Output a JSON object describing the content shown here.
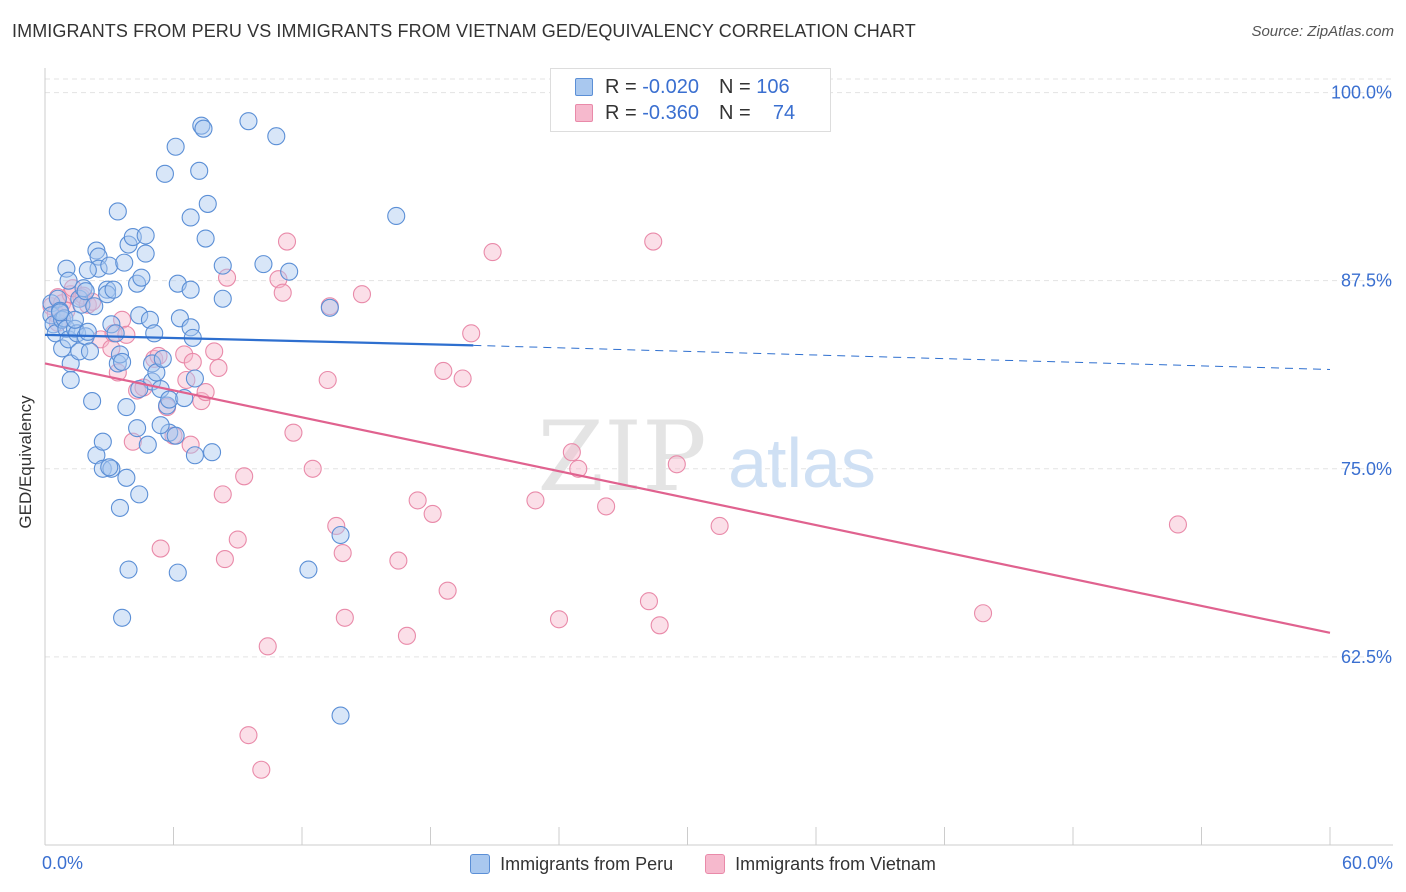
{
  "header": {
    "title": "IMMIGRANTS FROM PERU VS IMMIGRANTS FROM VIETNAM GED/EQUIVALENCY CORRELATION CHART",
    "source": "Source: ZipAtlas.com"
  },
  "watermark": {
    "zip": "ZIP",
    "atlas": "atlas"
  },
  "legend": {
    "peru": {
      "r_label": "R =",
      "r_value": "-0.020",
      "n_label": "N =",
      "n_value": "106"
    },
    "vietnam": {
      "r_label": "R =",
      "r_value": "-0.360",
      "n_label": "N =",
      "n_value": "74"
    }
  },
  "colors": {
    "peru_fill": "#a9c8ef",
    "peru_stroke": "#5b8fd6",
    "peru_line": "#2e6fcf",
    "vietnam_fill": "#f6b9cd",
    "vietnam_stroke": "#e98aa9",
    "vietnam_line": "#e0628f",
    "tick_label": "#3a6fd0",
    "grid": "#e3e3e3"
  },
  "chart_data": {
    "type": "scatter",
    "title": "IMMIGRANTS FROM PERU VS IMMIGRANTS FROM VIETNAM GED/EQUIVALENCY CORRELATION CHART",
    "xlabel": "",
    "ylabel": "GED/Equivalency",
    "xlim": [
      0,
      60
    ],
    "ylim": [
      50,
      101.5
    ],
    "x_tick_labels": [
      "0.0%",
      "60.0%"
    ],
    "y_ticks": [
      62.5,
      75.0,
      87.5,
      100.0
    ],
    "y_tick_labels": [
      "62.5%",
      "75.0%",
      "87.5%",
      "100.0%"
    ],
    "grid": true,
    "legend_position": "bottom-center",
    "series": [
      {
        "name": "Immigrants from Peru",
        "r": -0.02,
        "n": 106,
        "trend": {
          "x_solid": [
            0,
            20
          ],
          "y_solid": [
            83.9,
            83.2
          ],
          "x_dashed": [
            20,
            60
          ],
          "y_dashed": [
            83.2,
            81.6
          ]
        },
        "points": [
          [
            0.3,
            86.0
          ],
          [
            0.3,
            85.2
          ],
          [
            0.4,
            84.6
          ],
          [
            0.5,
            84.0
          ],
          [
            0.6,
            86.3
          ],
          [
            0.7,
            85.5
          ],
          [
            0.8,
            84.9
          ],
          [
            0.8,
            83.0
          ],
          [
            0.9,
            85.0
          ],
          [
            1.0,
            84.3
          ],
          [
            1.1,
            83.6
          ],
          [
            1.0,
            88.3
          ],
          [
            1.1,
            87.5
          ],
          [
            1.2,
            82.0
          ],
          [
            1.2,
            80.9
          ],
          [
            1.4,
            84.3
          ],
          [
            1.5,
            84.0
          ],
          [
            1.6,
            82.8
          ],
          [
            1.6,
            86.3
          ],
          [
            1.7,
            85.9
          ],
          [
            1.8,
            87.0
          ],
          [
            1.9,
            83.8
          ],
          [
            2.0,
            84.1
          ],
          [
            2.1,
            82.8
          ],
          [
            2.2,
            79.5
          ],
          [
            2.3,
            85.8
          ],
          [
            2.4,
            89.5
          ],
          [
            2.5,
            89.1
          ],
          [
            2.5,
            88.3
          ],
          [
            2.4,
            75.9
          ],
          [
            2.7,
            76.8
          ],
          [
            2.7,
            75.0
          ],
          [
            2.9,
            86.9
          ],
          [
            2.9,
            86.6
          ],
          [
            3.0,
            88.5
          ],
          [
            3.1,
            75.0
          ],
          [
            3.1,
            84.6
          ],
          [
            3.2,
            86.9
          ],
          [
            3.3,
            84.0
          ],
          [
            3.4,
            82.0
          ],
          [
            3.4,
            92.1
          ],
          [
            3.5,
            82.6
          ],
          [
            3.5,
            72.4
          ],
          [
            3.6,
            82.1
          ],
          [
            3.7,
            88.7
          ],
          [
            3.8,
            74.4
          ],
          [
            3.8,
            79.1
          ],
          [
            3.9,
            68.3
          ],
          [
            3.6,
            65.1
          ],
          [
            3.9,
            89.9
          ],
          [
            4.1,
            90.4
          ],
          [
            4.3,
            87.3
          ],
          [
            4.3,
            77.7
          ],
          [
            4.4,
            73.3
          ],
          [
            4.4,
            85.2
          ],
          [
            4.5,
            87.7
          ],
          [
            4.7,
            90.5
          ],
          [
            4.7,
            89.3
          ],
          [
            4.8,
            76.6
          ],
          [
            4.9,
            84.9
          ],
          [
            5.0,
            82.0
          ],
          [
            5.0,
            80.8
          ],
          [
            5.1,
            84.0
          ],
          [
            5.2,
            81.4
          ],
          [
            5.4,
            80.3
          ],
          [
            5.5,
            82.3
          ],
          [
            5.6,
            94.6
          ],
          [
            5.7,
            79.2
          ],
          [
            5.8,
            77.4
          ],
          [
            5.8,
            79.6
          ],
          [
            6.1,
            96.4
          ],
          [
            6.2,
            87.3
          ],
          [
            6.2,
            68.1
          ],
          [
            6.3,
            85.0
          ],
          [
            6.5,
            79.7
          ],
          [
            6.8,
            91.7
          ],
          [
            6.8,
            84.4
          ],
          [
            6.9,
            83.7
          ],
          [
            6.8,
            86.9
          ],
          [
            7.0,
            75.9
          ],
          [
            7.0,
            81.0
          ],
          [
            7.2,
            94.8
          ],
          [
            7.3,
            97.8
          ],
          [
            7.4,
            97.6
          ],
          [
            7.5,
            90.3
          ],
          [
            7.6,
            92.6
          ],
          [
            7.8,
            76.1
          ],
          [
            8.3,
            88.5
          ],
          [
            8.3,
            86.3
          ],
          [
            9.5,
            98.1
          ],
          [
            10.2,
            88.6
          ],
          [
            10.8,
            97.1
          ],
          [
            11.4,
            88.1
          ],
          [
            12.3,
            68.3
          ],
          [
            13.3,
            85.7
          ],
          [
            13.8,
            70.6
          ],
          [
            13.8,
            58.6
          ],
          [
            16.4,
            91.8
          ],
          [
            6.1,
            77.2
          ],
          [
            5.4,
            77.9
          ],
          [
            3.0,
            75.1
          ],
          [
            2.0,
            88.2
          ],
          [
            1.4,
            84.9
          ],
          [
            0.7,
            85.4
          ],
          [
            1.9,
            86.8
          ],
          [
            4.4,
            80.3
          ]
        ]
      },
      {
        "name": "Immigrants from Vietnam",
        "r": -0.36,
        "n": 74,
        "trend": {
          "x": [
            0,
            60
          ],
          "y": [
            82.0,
            64.1
          ]
        },
        "points": [
          [
            0.3,
            85.8
          ],
          [
            0.5,
            85.3
          ],
          [
            0.6,
            84.7
          ],
          [
            0.6,
            86.4
          ],
          [
            0.8,
            86.0
          ],
          [
            1.0,
            85.5
          ],
          [
            1.2,
            86.6
          ],
          [
            1.3,
            87.0
          ],
          [
            1.7,
            86.4
          ],
          [
            1.8,
            86.5
          ],
          [
            2.0,
            85.9
          ],
          [
            2.2,
            86.1
          ],
          [
            2.6,
            83.6
          ],
          [
            3.1,
            83.0
          ],
          [
            3.2,
            84.0
          ],
          [
            3.4,
            81.4
          ],
          [
            3.6,
            84.9
          ],
          [
            3.8,
            83.9
          ],
          [
            4.1,
            76.8
          ],
          [
            4.3,
            80.2
          ],
          [
            4.6,
            80.4
          ],
          [
            5.1,
            82.3
          ],
          [
            5.3,
            82.5
          ],
          [
            5.4,
            69.7
          ],
          [
            5.7,
            79.1
          ],
          [
            6.0,
            77.2
          ],
          [
            6.5,
            82.6
          ],
          [
            6.6,
            80.9
          ],
          [
            6.8,
            76.6
          ],
          [
            6.9,
            82.1
          ],
          [
            7.3,
            79.5
          ],
          [
            7.5,
            80.1
          ],
          [
            7.9,
            82.8
          ],
          [
            8.1,
            81.7
          ],
          [
            8.3,
            73.3
          ],
          [
            8.4,
            69.0
          ],
          [
            8.5,
            87.7
          ],
          [
            9.0,
            70.3
          ],
          [
            9.3,
            74.5
          ],
          [
            9.5,
            57.3
          ],
          [
            10.1,
            55.0
          ],
          [
            10.4,
            63.2
          ],
          [
            10.9,
            87.6
          ],
          [
            11.1,
            86.7
          ],
          [
            11.3,
            90.1
          ],
          [
            11.6,
            77.4
          ],
          [
            12.5,
            75.0
          ],
          [
            13.2,
            80.9
          ],
          [
            13.3,
            85.8
          ],
          [
            13.6,
            71.2
          ],
          [
            13.9,
            69.4
          ],
          [
            14.0,
            65.1
          ],
          [
            14.8,
            86.6
          ],
          [
            16.5,
            68.9
          ],
          [
            16.9,
            63.9
          ],
          [
            17.4,
            72.9
          ],
          [
            18.1,
            72.0
          ],
          [
            18.6,
            81.5
          ],
          [
            18.8,
            66.9
          ],
          [
            19.5,
            81.0
          ],
          [
            19.9,
            84.0
          ],
          [
            20.9,
            89.4
          ],
          [
            22.9,
            72.9
          ],
          [
            24.0,
            65.0
          ],
          [
            24.6,
            76.1
          ],
          [
            24.9,
            75.0
          ],
          [
            26.2,
            72.5
          ],
          [
            28.2,
            66.2
          ],
          [
            28.4,
            90.1
          ],
          [
            28.7,
            64.6
          ],
          [
            29.5,
            75.3
          ],
          [
            31.5,
            71.2
          ],
          [
            43.8,
            65.4
          ],
          [
            52.9,
            71.3
          ]
        ]
      }
    ]
  },
  "bottom_legend": {
    "peru_label": "Immigrants from Peru",
    "vietnam_label": "Immigrants from Vietnam"
  }
}
